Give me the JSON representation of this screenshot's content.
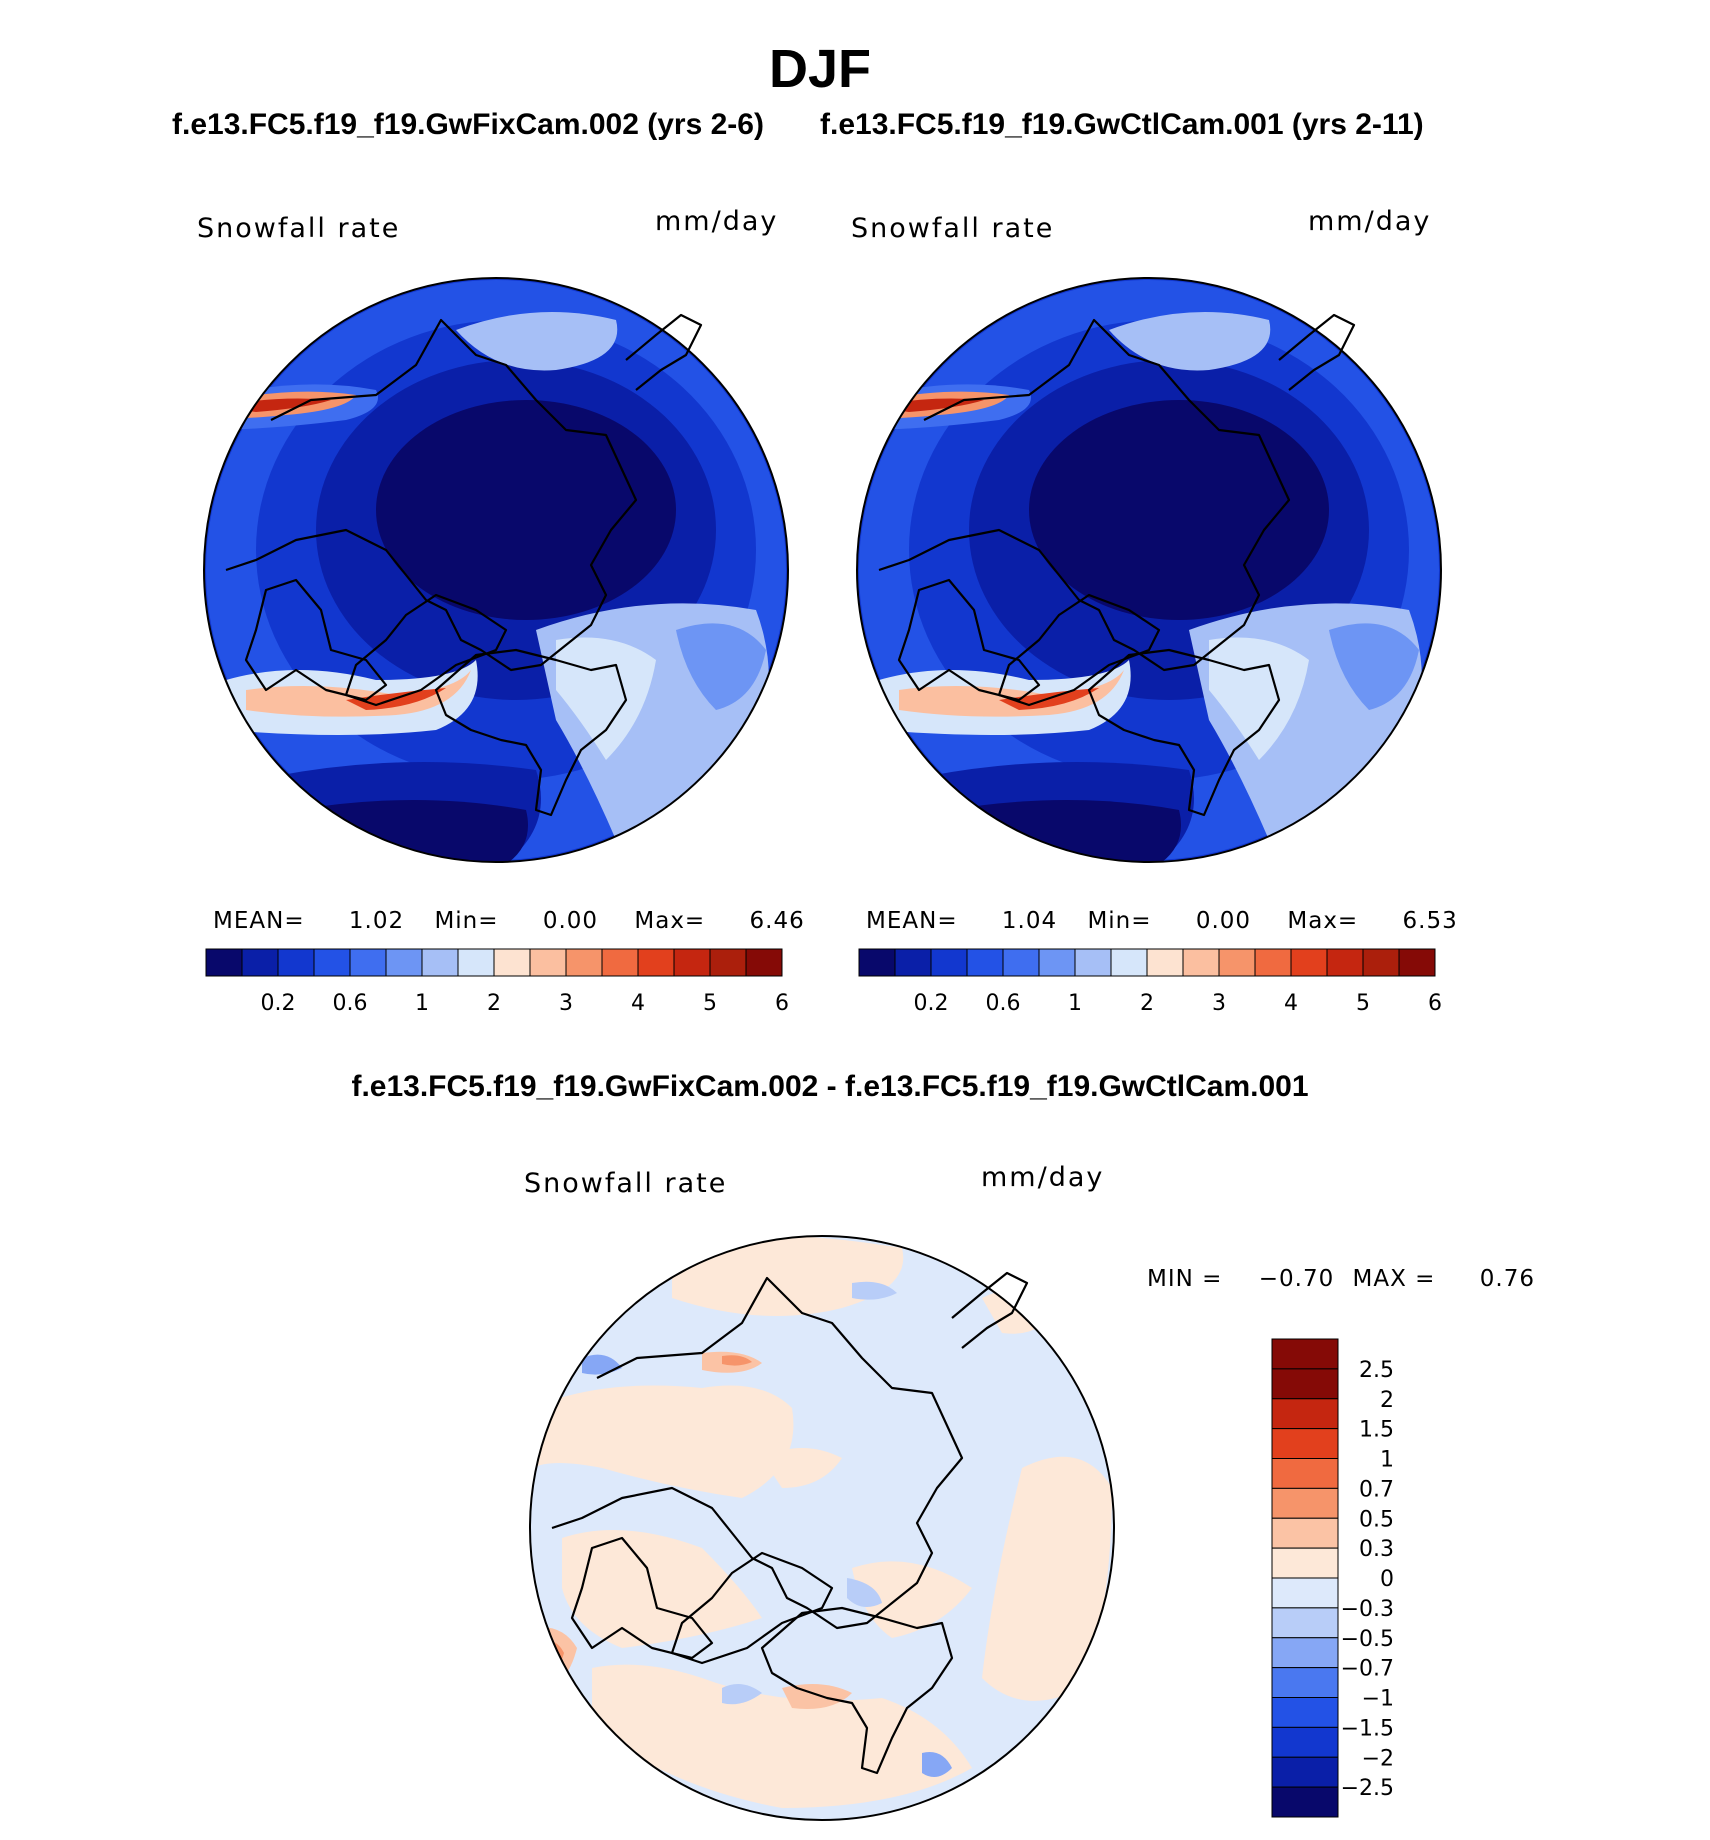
{
  "page": {
    "season": "DJF",
    "case1_title": "f.e13.FC5.f19_f19.GwFixCam.002 (yrs 2-6)",
    "case2_title": "f.e13.FC5.f19_f19.GwCtlCam.001 (yrs 2-11)",
    "diff_title": "f.e13.FC5.f19_f19.GwFixCam.002 - f.e13.FC5.f19_f19.GwCtlCam.001"
  },
  "colors": {
    "abs_scale": [
      "#08086b",
      "#0a1fa8",
      "#1237cf",
      "#2352e6",
      "#3f6ef0",
      "#6d95f4",
      "#a6bff6",
      "#d6e6fa",
      "#fde3d1",
      "#fbbfa0",
      "#f6946a",
      "#f06a40",
      "#e2401d",
      "#c52610",
      "#ab1f0c",
      "#850a06"
    ],
    "diff_scale": [
      "#08086b",
      "#0a1fa8",
      "#1237cf",
      "#2352e6",
      "#4a78f0",
      "#86a7f5",
      "#b8cdf8",
      "#dde9fb",
      "#fde8d8",
      "#fbc3a5",
      "#f6946a",
      "#f06a40",
      "#e2401d",
      "#c52610",
      "#850a06"
    ]
  },
  "chart_data": [
    {
      "type": "heatmap",
      "panel": "case1",
      "title": "Snowfall rate",
      "units": "mm/day",
      "projection": "north polar stereographic",
      "stats": {
        "mean_label": "MEAN=",
        "mean": "1.02",
        "min_label": "Min=",
        "min": "0.00",
        "max_label": "Max=",
        "max": "6.46"
      },
      "colorbar_ticks": [
        "0.2",
        "0.6",
        "1",
        "2",
        "3",
        "4",
        "5",
        "6"
      ]
    },
    {
      "type": "heatmap",
      "panel": "case2",
      "title": "Snowfall rate",
      "units": "mm/day",
      "projection": "north polar stereographic",
      "stats": {
        "mean_label": "MEAN=",
        "mean": "1.04",
        "min_label": "Min=",
        "min": "0.00",
        "max_label": "Max=",
        "max": "6.53"
      },
      "colorbar_ticks": [
        "0.2",
        "0.6",
        "1",
        "2",
        "3",
        "4",
        "5",
        "6"
      ]
    },
    {
      "type": "heatmap",
      "panel": "difference",
      "title": "Snowfall rate",
      "units": "mm/day",
      "projection": "north polar stereographic",
      "stats": {
        "min_label": "MIN =",
        "min": "−0.70",
        "max_label": "MAX =",
        "max": "0.76"
      },
      "colorbar_ticks": [
        "2.5",
        "2",
        "1.5",
        "1",
        "0.7",
        "0.5",
        "0.3",
        "0",
        "−0.3",
        "−0.5",
        "−0.7",
        "−1",
        "−1.5",
        "−2",
        "−2.5"
      ]
    }
  ]
}
